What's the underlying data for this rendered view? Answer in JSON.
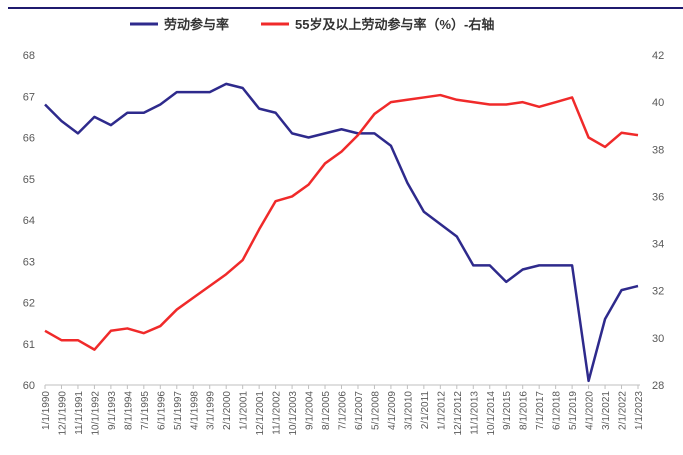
{
  "chart_data": {
    "type": "line",
    "categories": [
      "1/1/1990",
      "12/1/1990",
      "11/1/1991",
      "10/1/1992",
      "9/1/1993",
      "8/1/1994",
      "7/1/1995",
      "6/1/1996",
      "5/1/1997",
      "4/1/1998",
      "3/1/1999",
      "2/1/2000",
      "1/1/2001",
      "12/1/2001",
      "11/1/2002",
      "10/1/2003",
      "9/1/2004",
      "8/1/2005",
      "7/1/2006",
      "6/1/2007",
      "5/1/2008",
      "4/1/2009",
      "3/1/2010",
      "2/1/2011",
      "1/1/2012",
      "12/1/2012",
      "11/1/2013",
      "10/1/2014",
      "9/1/2015",
      "8/1/2016",
      "7/1/2017",
      "6/1/2018",
      "5/1/2019",
      "4/1/2020",
      "3/1/2021",
      "2/1/2022",
      "1/1/2023"
    ],
    "series": [
      {
        "name": "劳动参与率",
        "color": "#2e2a8c",
        "values": [
          66.8,
          66.4,
          66.1,
          66.5,
          66.3,
          66.6,
          66.6,
          66.8,
          67.1,
          67.1,
          67.1,
          67.3,
          67.2,
          66.7,
          66.6,
          66.1,
          66.0,
          66.1,
          66.2,
          66.1,
          66.1,
          65.8,
          64.9,
          64.2,
          63.9,
          63.6,
          62.9,
          62.9,
          62.5,
          62.8,
          62.9,
          62.9,
          62.9,
          60.1,
          61.6,
          62.3,
          62.4
        ]
      },
      {
        "name": "55岁及以上劳动参与率（%）-右轴",
        "color": "#f02a2a",
        "axis": "y2",
        "values": [
          30.3,
          29.9,
          29.9,
          29.5,
          30.3,
          30.4,
          30.2,
          30.5,
          31.2,
          31.7,
          32.2,
          32.7,
          33.3,
          34.6,
          35.8,
          36.0,
          36.5,
          37.4,
          37.9,
          38.6,
          39.5,
          40.0,
          40.1,
          40.2,
          40.3,
          40.1,
          40.0,
          39.9,
          39.9,
          40.0,
          39.8,
          40.0,
          40.2,
          38.5,
          38.1,
          38.7,
          38.6
        ]
      }
    ],
    "ylim": [
      60,
      68
    ],
    "yticks": [
      60,
      61,
      62,
      63,
      64,
      65,
      66,
      67,
      68
    ],
    "y2lim": [
      28,
      42
    ],
    "y2ticks": [
      28,
      30,
      32,
      34,
      36,
      38,
      40,
      42
    ],
    "legend": "top",
    "grid": false
  }
}
